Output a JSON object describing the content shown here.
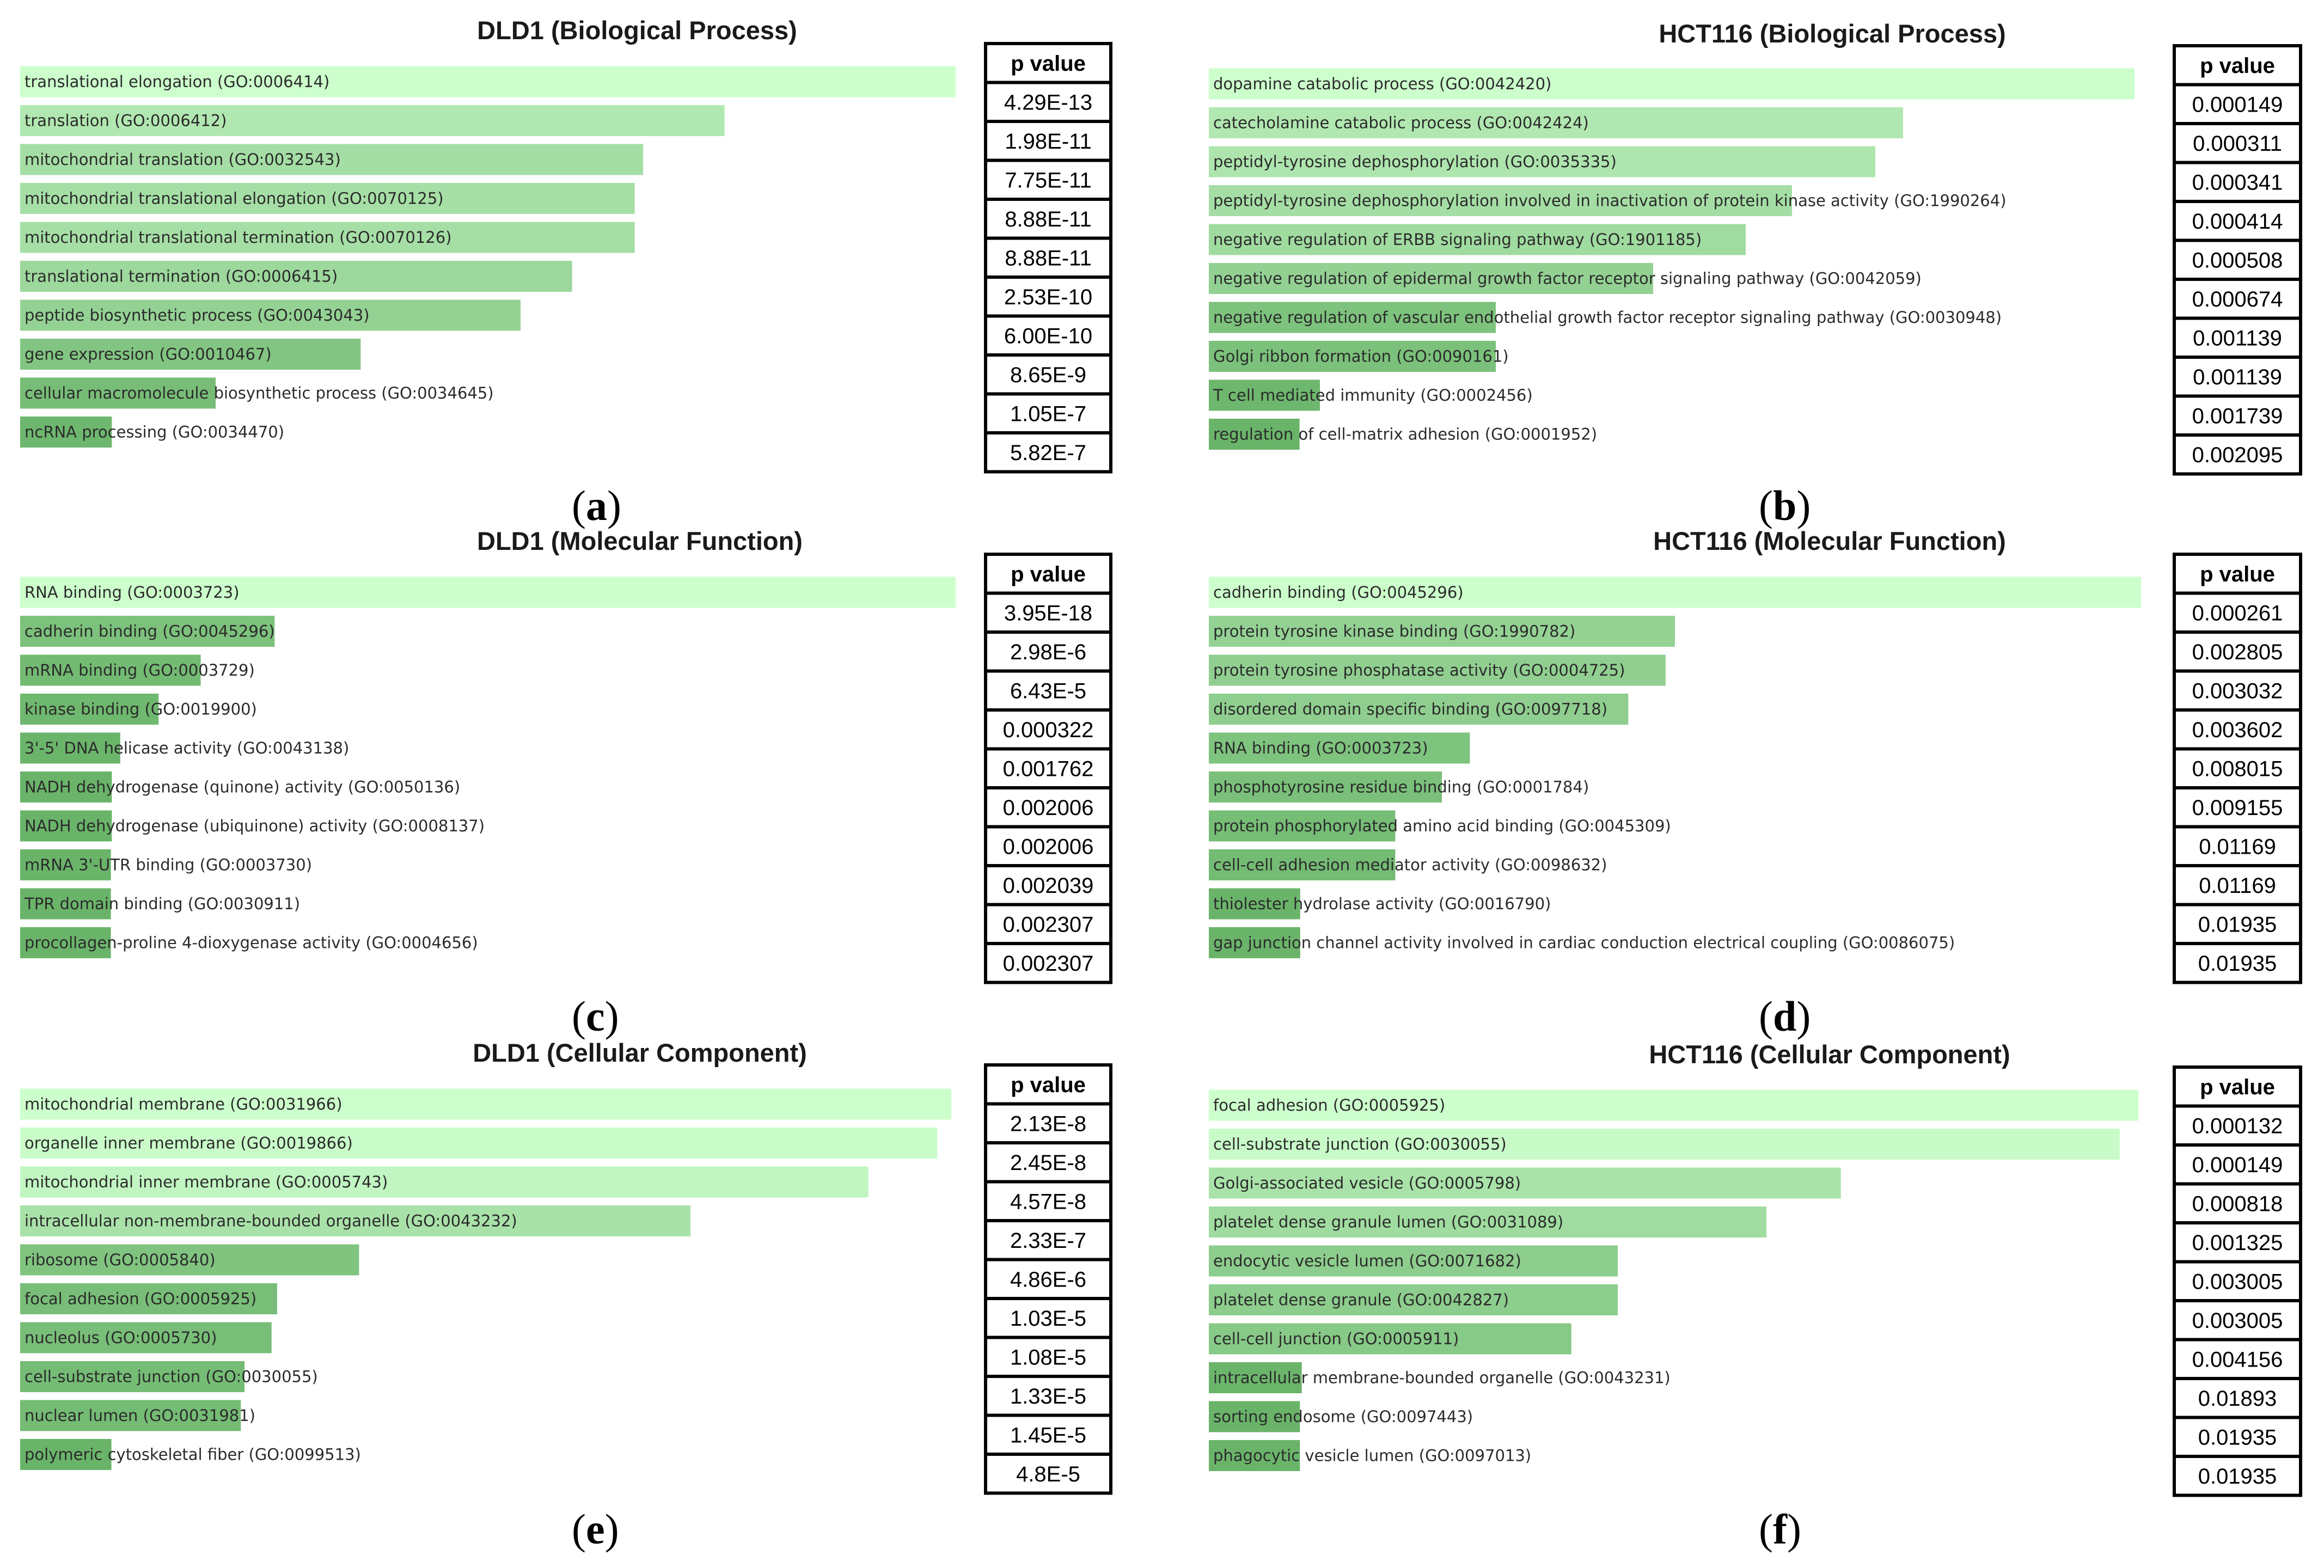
{
  "p_header": "p value",
  "chart_data": [
    {
      "type": "bar",
      "title": "DLD1 (Biological Process)",
      "panel_label": "a",
      "xlim": [
        0,
        1
      ],
      "categories": [
        "translational elongation (GO:0006414)",
        "translation (GO:0006412)",
        "mitochondrial translation (GO:0032543)",
        "mitochondrial translational elongation (GO:0070125)",
        "mitochondrial translational termination (GO:0070126)",
        "translational termination (GO:0006415)",
        "peptide biosynthetic process (GO:0043043)",
        "gene expression (GO:0010467)",
        "cellular macromolecule biosynthetic process (GO:0034645)",
        "ncRNA processing (GO:0034470)"
      ],
      "values": [
        1.0,
        0.753,
        0.666,
        0.657,
        0.657,
        0.59,
        0.535,
        0.364,
        0.209,
        0.098
      ],
      "p_values": [
        "4.29E-13",
        "1.98E-11",
        "7.75E-11",
        "8.88E-11",
        "8.88E-11",
        "2.53E-10",
        "6.00E-10",
        "8.65E-9",
        "1.05E-7",
        "5.82E-7"
      ],
      "colors": [
        "#ccffcc",
        "#b1e8b1",
        "#a5dea5",
        "#a6dfa6",
        "#a6dfa6",
        "#9dd89d",
        "#94d294",
        "#82c582",
        "#77bd77",
        "#6eb76e"
      ]
    },
    {
      "type": "bar",
      "title": "HCT116 (Biological Process)",
      "panel_label": "b",
      "xlim": [
        0,
        1
      ],
      "categories": [
        "dopamine catabolic process (GO:0042420)",
        "catecholamine catabolic process (GO:0042424)",
        "peptidyl-tyrosine dephosphorylation (GO:0035335)",
        "peptidyl-tyrosine dephosphorylation involved in inactivation of protein kinase activity (GO:1990264)",
        "negative regulation of ERBB signaling pathway (GO:1901185)",
        "negative regulation of epidermal growth factor receptor signaling pathway (GO:0042059)",
        "negative regulation of vascular endothelial growth factor receptor signaling pathway (GO:0030948)",
        "Golgi ribbon formation (GO:0090161)",
        "T cell mediated immunity (GO:0002456)",
        "regulation of cell-matrix adhesion (GO:0001952)"
      ],
      "values": [
        1.0,
        0.75,
        0.72,
        0.63,
        0.58,
        0.48,
        0.31,
        0.31,
        0.12,
        0.098
      ],
      "p_values": [
        "0.000149",
        "0.000311",
        "0.000341",
        "0.000414",
        "0.000508",
        "0.000674",
        "0.001139",
        "0.001139",
        "0.001739",
        "0.002095"
      ],
      "colors": [
        "#ccffcc",
        "#b1e8b1",
        "#aee5ae",
        "#a5dea5",
        "#a0dba0",
        "#93d193",
        "#7dc27d",
        "#7bc17b",
        "#6eb76e",
        "#6ab46a"
      ]
    },
    {
      "type": "bar",
      "title": "DLD1 (Molecular Function)",
      "panel_label": "c",
      "xlim": [
        0,
        1
      ],
      "categories": [
        "RNA binding (GO:0003723)",
        "cadherin binding (GO:0045296)",
        "mRNA binding (GO:0003729)",
        "kinase binding (GO:0019900)",
        "3'-5' DNA helicase activity (GO:0043138)",
        "NADH dehydrogenase (quinone) activity (GO:0050136)",
        "NADH dehydrogenase (ubiquinone) activity (GO:0008137)",
        "mRNA 3'-UTR binding (GO:0003730)",
        "TPR domain binding (GO:0030911)",
        "procollagen-proline 4-dioxygenase activity (GO:0004656)"
      ],
      "values": [
        1.0,
        0.272,
        0.193,
        0.148,
        0.107,
        0.098,
        0.098,
        0.097,
        0.097,
        0.097
      ],
      "p_values": [
        "3.95E-18",
        "2.98E-6",
        "6.43E-5",
        "0.000322",
        "0.001762",
        "0.002006",
        "0.002006",
        "0.002039",
        "0.002307",
        "0.002307"
      ],
      "colors": [
        "#ccffcc",
        "#7cc17c",
        "#73ba73",
        "#6fb86f",
        "#6bb56b",
        "#6ab46a",
        "#6ab46a",
        "#6ab46a",
        "#6ab46a",
        "#6ab46a"
      ]
    },
    {
      "type": "bar",
      "title": "HCT116 (Molecular Function)",
      "panel_label": "d",
      "xlim": [
        0,
        1
      ],
      "categories": [
        "cadherin binding (GO:0045296)",
        "protein tyrosine kinase binding (GO:1990782)",
        "protein tyrosine phosphatase activity (GO:0004725)",
        "disordered domain specific binding (GO:0097718)",
        "RNA binding (GO:0003723)",
        "phosphotyrosine residue binding (GO:0001784)",
        "protein phosphorylated amino acid binding (GO:0045309)",
        "cell-cell adhesion mediator activity (GO:0098632)",
        "thiolester hydrolase activity (GO:0016790)",
        "gap junction channel activity involved in cardiac conduction electrical coupling (GO:0086075)"
      ],
      "values": [
        1.0,
        0.5,
        0.49,
        0.45,
        0.28,
        0.25,
        0.2,
        0.2,
        0.098,
        0.098
      ],
      "p_values": [
        "0.000261",
        "0.002805",
        "0.003032",
        "0.003602",
        "0.008015",
        "0.009155",
        "0.01169",
        "0.01169",
        "0.01935",
        "0.01935"
      ],
      "colors": [
        "#ccffcc",
        "#94d294",
        "#91cf91",
        "#8fce8f",
        "#7ec37e",
        "#7ac07a",
        "#76bd76",
        "#74bb74",
        "#6ab46a",
        "#6ab46a"
      ]
    },
    {
      "type": "bar",
      "title": "DLD1 (Cellular Component)",
      "panel_label": "e",
      "xlim": [
        0,
        1
      ],
      "categories": [
        "mitochondrial membrane (GO:0031966)",
        "organelle inner membrane (GO:0019866)",
        "mitochondrial inner membrane (GO:0005743)",
        "intracellular non-membrane-bounded organelle (GO:0043232)",
        "ribosome (GO:0005840)",
        "focal adhesion (GO:0005925)",
        "nucleolus (GO:0005730)",
        "cell-substrate junction (GO:0030055)",
        "nuclear lumen (GO:0031981)",
        "polymeric cytoskeletal fiber (GO:0099513)"
      ],
      "values": [
        1.0,
        0.985,
        0.911,
        0.72,
        0.364,
        0.276,
        0.27,
        0.241,
        0.237,
        0.098
      ],
      "p_values": [
        "2.13E-8",
        "2.45E-8",
        "4.57E-8",
        "2.33E-7",
        "4.86E-6",
        "1.03E-5",
        "1.08E-5",
        "1.33E-5",
        "1.45E-5",
        "4.8E-5"
      ],
      "colors": [
        "#ccffcc",
        "#c9fcc9",
        "#c1f5c1",
        "#a9e2a9",
        "#80c480",
        "#78be78",
        "#78be78",
        "#75bc75",
        "#74bb74",
        "#6ab46a"
      ]
    },
    {
      "type": "bar",
      "title": "HCT116 (Cellular Component)",
      "panel_label": "f",
      "xlim": [
        0,
        1
      ],
      "categories": [
        "focal adhesion (GO:0005925)",
        "cell-substrate junction (GO:0030055)",
        "Golgi-associated vesicle (GO:0005798)",
        "platelet dense granule lumen (GO:0031089)",
        "endocytic vesicle lumen (GO:0071682)",
        "platelet dense granule (GO:0042827)",
        "cell-cell junction (GO:0005911)",
        "intracellular membrane-bounded organelle (GO:0043231)",
        "sorting endosome (GO:0097443)",
        "phagocytic vesicle lumen (GO:0097013)"
      ],
      "values": [
        1.0,
        0.98,
        0.68,
        0.6,
        0.44,
        0.44,
        0.39,
        0.1,
        0.098,
        0.098
      ],
      "p_values": [
        "0.000132",
        "0.000149",
        "0.000818",
        "0.001325",
        "0.003005",
        "0.003005",
        "0.004156",
        "0.01893",
        "0.01935",
        "0.01935"
      ],
      "colors": [
        "#ccffcc",
        "#c8fbc8",
        "#a9e3a9",
        "#a0dca0",
        "#8dcd8d",
        "#8dcd8d",
        "#87c987",
        "#6bb56b",
        "#6ab46a",
        "#6ab46a"
      ]
    }
  ]
}
